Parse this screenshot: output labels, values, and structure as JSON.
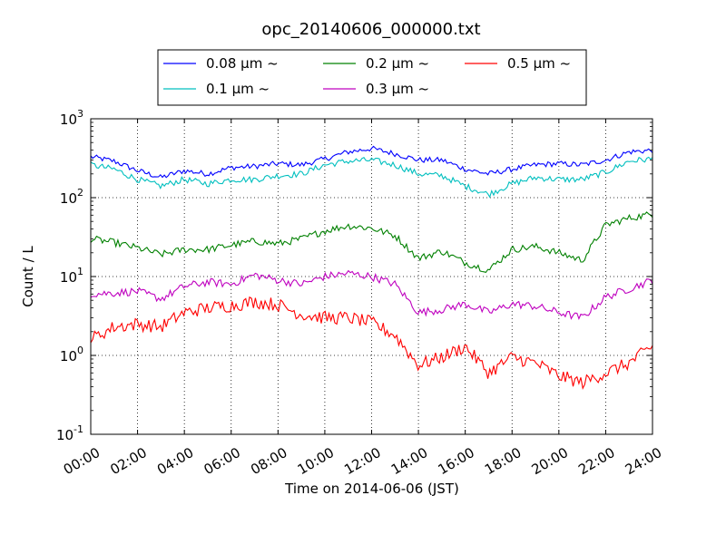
{
  "chart_data": {
    "type": "line",
    "title": "opc_20140606_000000.txt",
    "xlabel": "Time on 2014-06-06 (JST)",
    "ylabel": "Count / L",
    "yscale": "log",
    "ylim": [
      0.1,
      1000
    ],
    "xlim": [
      "00:00",
      "24:00"
    ],
    "x_ticks": [
      "00:00",
      "02:00",
      "04:00",
      "06:00",
      "08:00",
      "10:00",
      "12:00",
      "14:00",
      "16:00",
      "18:00",
      "20:00",
      "22:00",
      "24:00"
    ],
    "y_ticks": [
      {
        "base": "10",
        "exp": "-1",
        "value": 0.1
      },
      {
        "base": "10",
        "exp": "0",
        "value": 1
      },
      {
        "base": "10",
        "exp": "1",
        "value": 10
      },
      {
        "base": "10",
        "exp": "2",
        "value": 100
      },
      {
        "base": "10",
        "exp": "3",
        "value": 1000
      }
    ],
    "grid": true,
    "legend_position": "top",
    "x": [
      "00:00",
      "01:00",
      "02:00",
      "03:00",
      "04:00",
      "05:00",
      "06:00",
      "07:00",
      "08:00",
      "09:00",
      "10:00",
      "11:00",
      "12:00",
      "13:00",
      "14:00",
      "15:00",
      "16:00",
      "17:00",
      "18:00",
      "19:00",
      "20:00",
      "21:00",
      "22:00",
      "23:00",
      "24:00"
    ],
    "series": [
      {
        "name": "0.08 μm ~",
        "color": "#0000ff",
        "values": [
          330,
          290,
          220,
          180,
          220,
          200,
          240,
          250,
          270,
          260,
          310,
          380,
          420,
          360,
          300,
          300,
          230,
          200,
          230,
          260,
          270,
          260,
          300,
          380,
          400
        ]
      },
      {
        "name": "0.1 μm ~",
        "color": "#00bfbf",
        "values": [
          260,
          230,
          170,
          140,
          170,
          150,
          170,
          170,
          190,
          200,
          260,
          290,
          300,
          260,
          200,
          190,
          140,
          110,
          150,
          180,
          170,
          170,
          210,
          290,
          310
        ]
      },
      {
        "name": "0.2 μm ~",
        "color": "#008000",
        "values": [
          30,
          27,
          23,
          19,
          22,
          22,
          25,
          28,
          26,
          30,
          38,
          44,
          41,
          33,
          17,
          21,
          15,
          12,
          22,
          24,
          20,
          16,
          45,
          55,
          62
        ]
      },
      {
        "name": "0.3 μm ~",
        "color": "#bf00bf",
        "values": [
          6.0,
          6.2,
          6.5,
          5.2,
          7.5,
          8.5,
          8.0,
          10.5,
          9.0,
          8.0,
          10.0,
          11.0,
          10.0,
          8.0,
          3.5,
          3.8,
          4.5,
          3.5,
          4.5,
          4.2,
          3.5,
          3.0,
          5.5,
          7.0,
          9.0
        ]
      },
      {
        "name": "0.5 μm ~",
        "color": "#ff0000",
        "values": [
          1.6,
          2.3,
          2.5,
          2.3,
          3.5,
          4.0,
          4.3,
          4.8,
          4.4,
          3.3,
          3.0,
          3.0,
          2.6,
          1.8,
          0.75,
          0.95,
          1.3,
          0.6,
          0.95,
          0.8,
          0.55,
          0.45,
          0.6,
          0.8,
          1.3
        ]
      }
    ]
  }
}
